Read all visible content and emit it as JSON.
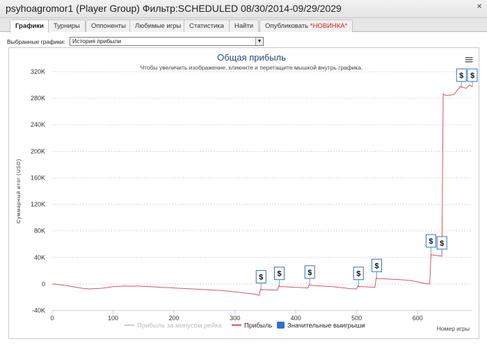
{
  "window": {
    "title": "psyhoagromor1 (Player Group) Фильтр:SCHEDULED 08/30/2014-09/29/2029",
    "close_glyph": "×"
  },
  "tabs": [
    {
      "label": "Графики",
      "active": true
    },
    {
      "label": "Турниры",
      "active": false
    },
    {
      "label": "Оппоненты",
      "active": false
    },
    {
      "label": "Любимые игры",
      "active": false
    },
    {
      "label": "Статистика",
      "active": false
    },
    {
      "label": "Найти",
      "active": false
    },
    {
      "label": "Опубликовать",
      "badge": "*НОВИНКА*",
      "active": false
    }
  ],
  "selector": {
    "label": "Выбранные графики:",
    "value": "История прибыли",
    "arrow": "▼"
  },
  "menu_glyph": "≡",
  "colors": {
    "profit_line": "#d9535a",
    "rake_line": "#cccccc",
    "big_win_flag": "#2f6fd0",
    "title": "#274b6d"
  },
  "chart_data": {
    "type": "line",
    "title": "Общая прибыль",
    "subtitle": "Чтобы увеличить изображение, кликните и перетащите мышкой внутрь графика.",
    "xlabel": "Номер игры",
    "ylabel": "Суммарный итог (USD)",
    "xlim": [
      0,
      690
    ],
    "ylim": [
      -40000,
      320000
    ],
    "x_ticks": [
      0,
      100,
      200,
      300,
      400,
      500,
      600
    ],
    "y_ticks": [
      -40000,
      0,
      40000,
      80000,
      120000,
      160000,
      200000,
      240000,
      280000,
      320000
    ],
    "y_tick_labels": [
      "-40K",
      "0",
      "40K",
      "80K",
      "120K",
      "160K",
      "200K",
      "240K",
      "280K",
      "320K"
    ],
    "grid": true,
    "legend_position": "bottom-center",
    "series": [
      {
        "name": "Прибыль за минусом рейка",
        "color": "#cccccc",
        "x": [],
        "y": []
      },
      {
        "name": "Прибыль",
        "color": "#d9535a",
        "x": [
          0,
          10,
          20,
          30,
          40,
          50,
          60,
          70,
          80,
          90,
          100,
          110,
          120,
          130,
          140,
          150,
          160,
          170,
          180,
          190,
          200,
          210,
          220,
          230,
          240,
          250,
          260,
          270,
          280,
          290,
          300,
          310,
          320,
          330,
          340,
          342,
          343,
          350,
          360,
          370,
          372,
          373,
          380,
          390,
          400,
          410,
          420,
          422,
          423,
          430,
          440,
          450,
          460,
          470,
          480,
          490,
          500,
          502,
          503,
          510,
          520,
          530,
          532,
          533,
          540,
          550,
          560,
          570,
          580,
          590,
          600,
          610,
          620,
          622,
          623,
          630,
          640,
          642,
          643,
          650,
          660,
          670,
          672,
          673,
          680,
          685,
          690
        ],
        "y": [
          0,
          -1000,
          -2000,
          -3500,
          -5000,
          -6500,
          -7500,
          -7000,
          -6500,
          -5500,
          -4000,
          -3500,
          -3000,
          -3500,
          -3000,
          -3500,
          -4000,
          -4500,
          -5000,
          -5500,
          -6000,
          -6500,
          -7000,
          -7500,
          -8000,
          -8500,
          -9000,
          -9500,
          -10000,
          -11000,
          -12000,
          -13000,
          -14000,
          -15000,
          -17000,
          -8000,
          -9000,
          -8500,
          -9000,
          -9500,
          -3000,
          -4000,
          -4000,
          -4500,
          -5000,
          -5500,
          -6000,
          -1000,
          -2000,
          -2500,
          -3000,
          -3500,
          -4000,
          -5000,
          -6000,
          -7000,
          -7500,
          -3000,
          -4000,
          -4000,
          -4500,
          -5000,
          9000,
          8000,
          8000,
          7500,
          7000,
          6500,
          6000,
          5000,
          3000,
          1000,
          0,
          45000,
          44000,
          43000,
          42000,
          287000,
          285000,
          284000,
          286000,
          298000,
          296000,
          297000,
          295000,
          300000,
          297000
        ]
      }
    ],
    "big_wins": {
      "name": "Значительные выигрыши",
      "symbol": "$",
      "x": [
        343,
        373,
        423,
        503,
        533,
        622,
        640,
        672,
        690
      ]
    }
  }
}
